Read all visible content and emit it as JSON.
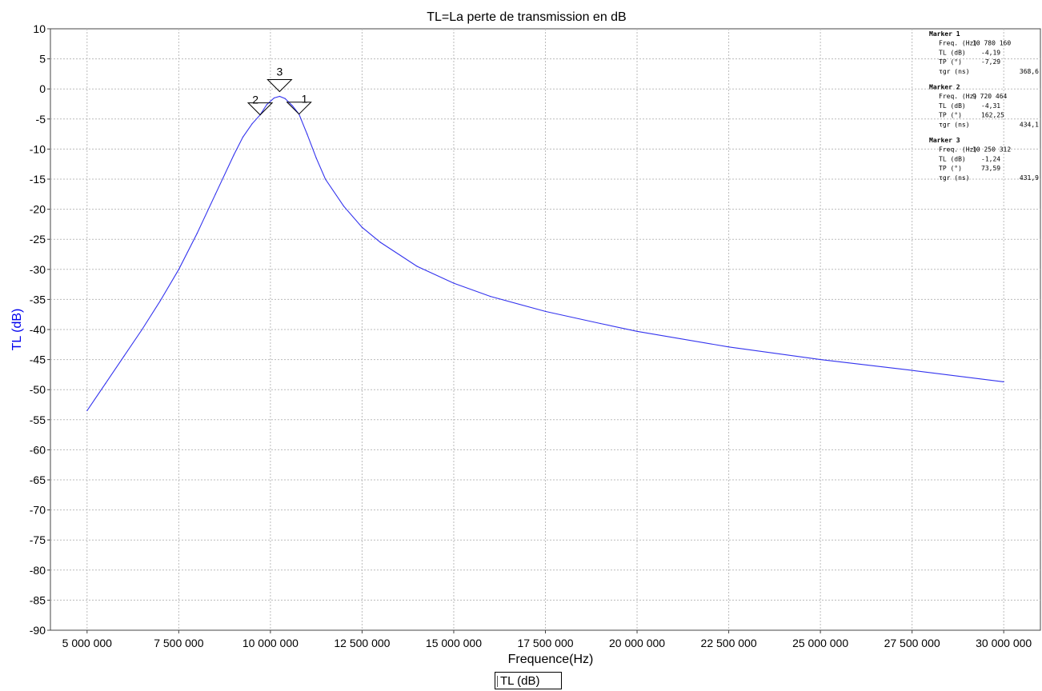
{
  "chart_data": {
    "type": "line",
    "title": "TL=La perte de transmission en dB",
    "xlabel": "Frequence(Hz)",
    "ylabel": "TL (dB)",
    "xlim": [
      4000000,
      31000000
    ],
    "ylim": [
      -90,
      10
    ],
    "x_ticks": [
      5000000,
      7500000,
      10000000,
      12500000,
      15000000,
      17500000,
      20000000,
      22500000,
      25000000,
      27500000,
      30000000
    ],
    "x_tick_labels": [
      "5 000 000",
      "7 500 000",
      "10 000 000",
      "12 500 000",
      "15 000 000",
      "17 500 000",
      "20 000 000",
      "22 500 000",
      "25 000 000",
      "27 500 000",
      "30 000 000"
    ],
    "y_ticks": [
      10,
      5,
      0,
      -5,
      -10,
      -15,
      -20,
      -25,
      -30,
      -35,
      -40,
      -45,
      -50,
      -55,
      -60,
      -65,
      -70,
      -75,
      -80,
      -85,
      -90
    ],
    "y_tick_labels": [
      "10",
      "5",
      "0",
      "-5",
      "-10",
      "-15",
      "-20",
      "-25",
      "-30",
      "-35",
      "-40",
      "-45",
      "-50",
      "-55",
      "-60",
      "-65",
      "-70",
      "-75",
      "-80",
      "-85",
      "-90"
    ],
    "grid": true,
    "legend_position": "bottom",
    "colors": {
      "series": "#3333ee",
      "ylabel": "#0000ee",
      "grid": "#bbbbbb"
    },
    "series": [
      {
        "name": "TL (dB)",
        "x": [
          5000000,
          5500000,
          6000000,
          6500000,
          7000000,
          7500000,
          8000000,
          8500000,
          9000000,
          9250000,
          9500000,
          9720464,
          9900000,
          10100000,
          10250312,
          10400000,
          10600000,
          10780160,
          11000000,
          11250000,
          11500000,
          12000000,
          12500000,
          13000000,
          14000000,
          15000000,
          16000000,
          17500000,
          19000000,
          20000000,
          22500000,
          25000000,
          27500000,
          30000000
        ],
        "y": [
          -53.5,
          -49.0,
          -44.5,
          -40.0,
          -35.2,
          -30.0,
          -24.0,
          -17.5,
          -11.0,
          -8.0,
          -5.8,
          -4.31,
          -2.6,
          -1.5,
          -1.24,
          -1.6,
          -2.8,
          -4.19,
          -7.5,
          -11.5,
          -15.0,
          -19.5,
          -23.0,
          -25.5,
          -29.5,
          -32.3,
          -34.5,
          -37.0,
          -39.0,
          -40.3,
          -42.9,
          -45.0,
          -46.8,
          -48.7
        ]
      }
    ],
    "markers": [
      {
        "label": "1",
        "x": 10780160,
        "y": -4.19,
        "lines": [
          {
            "name": "Marker 1"
          },
          {
            "name": "Freq. (Hz)",
            "value": "10 780 160"
          },
          {
            "name": "TL (dB)",
            "value": "-4,19"
          },
          {
            "name": "TP (°)",
            "value": "-7,29"
          },
          {
            "name": "τgr (ns)",
            "value": "368,6"
          }
        ]
      },
      {
        "label": "2",
        "x": 9720464,
        "y": -4.31,
        "lines": [
          {
            "name": "Marker 2"
          },
          {
            "name": "Freq. (Hz)",
            "value": "9 720 464"
          },
          {
            "name": "TL (dB)",
            "value": "-4,31"
          },
          {
            "name": "TP (°)",
            "value": "162,25"
          },
          {
            "name": "τgr (ns)",
            "value": "434,1"
          }
        ]
      },
      {
        "label": "3",
        "x": 10250312,
        "y": -1.24,
        "lines": [
          {
            "name": "Marker 3"
          },
          {
            "name": "Freq. (Hz)",
            "value": "10 250 312"
          },
          {
            "name": "TL (dB)",
            "value": "-1,24"
          },
          {
            "name": "TP (°)",
            "value": "73,59"
          },
          {
            "name": "τgr (ns)",
            "value": "431,9"
          }
        ]
      }
    ]
  }
}
